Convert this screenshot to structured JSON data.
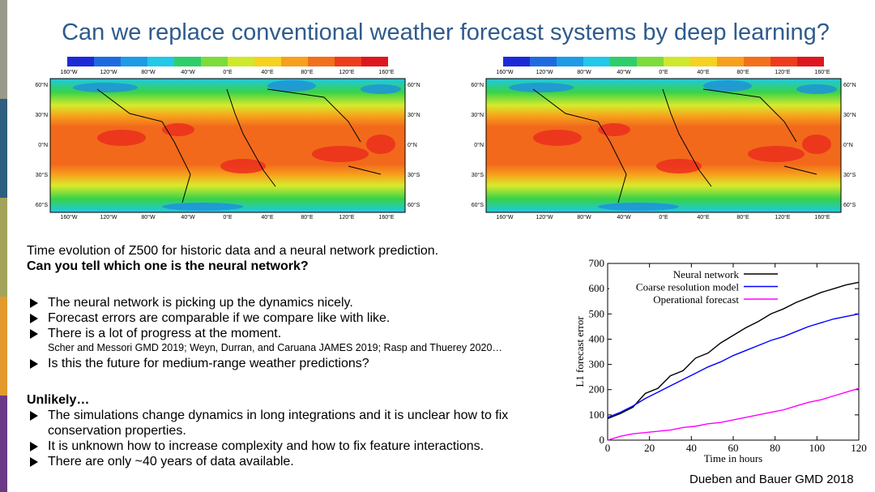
{
  "title": "Can we replace conventional weather forecast systems by deep learning?",
  "maps": {
    "lon_labels": [
      "160°W",
      "120°W",
      "80°W",
      "40°W",
      "0°E",
      "40°E",
      "80°E",
      "120°E",
      "160°E"
    ],
    "lat_labels": [
      "60°N",
      "30°N",
      "0°N",
      "30°S",
      "60°S"
    ]
  },
  "caption": "Time evolution of Z500 for historic data and a neural network prediction.",
  "question": "Can you tell which one is the neural network?",
  "bullets": [
    "The neural network is picking up the dynamics nicely.",
    "Forecast errors are comparable if we compare like with like.",
    "There is a lot of progress at the moment."
  ],
  "references": "Scher and Messori GMD 2019; Weyn, Durran, and Caruana JAMES 2019; Rasp and Thuerey 2020…",
  "bullets2": [
    "Is this the future for medium-range weather predictions?"
  ],
  "unlikely": "Unlikely…",
  "concerns": [
    "The simulations change dynamics in long integrations and it is unclear how to fix conservation properties.",
    "It is unknown how to increase complexity and how to fix feature interactions.",
    "There are only ~40 years of data available."
  ],
  "chart_data": {
    "type": "line",
    "x_label": "Time in hours",
    "y_label": "L1 forecast error",
    "x": [
      0,
      6,
      12,
      18,
      24,
      30,
      36,
      42,
      48,
      54,
      60,
      66,
      72,
      78,
      84,
      90,
      96,
      102,
      108,
      114,
      120
    ],
    "series": [
      {
        "name": "Neural network",
        "color": "#000000",
        "values": [
          85,
          105,
          130,
          185,
          205,
          255,
          275,
          325,
          345,
          385,
          415,
          445,
          470,
          500,
          520,
          545,
          565,
          585,
          600,
          615,
          625
        ]
      },
      {
        "name": "Coarse resolution model",
        "color": "#0000ff",
        "values": [
          90,
          110,
          135,
          165,
          190,
          215,
          240,
          265,
          290,
          310,
          335,
          355,
          375,
          395,
          410,
          430,
          450,
          465,
          480,
          490,
          500
        ]
      },
      {
        "name": "Operational forecast",
        "color": "#ff00ff",
        "values": [
          0,
          15,
          25,
          30,
          35,
          40,
          50,
          55,
          65,
          70,
          80,
          90,
          100,
          110,
          120,
          135,
          150,
          160,
          175,
          190,
          205
        ]
      }
    ],
    "xlim": [
      0,
      120
    ],
    "xticks": [
      0,
      20,
      40,
      60,
      80,
      100,
      120
    ],
    "ylim": [
      0,
      700
    ],
    "yticks": [
      0,
      100,
      200,
      300,
      400,
      500,
      600,
      700
    ],
    "legend": "upper-left"
  },
  "source": "Dueben and Bauer GMD 2018"
}
